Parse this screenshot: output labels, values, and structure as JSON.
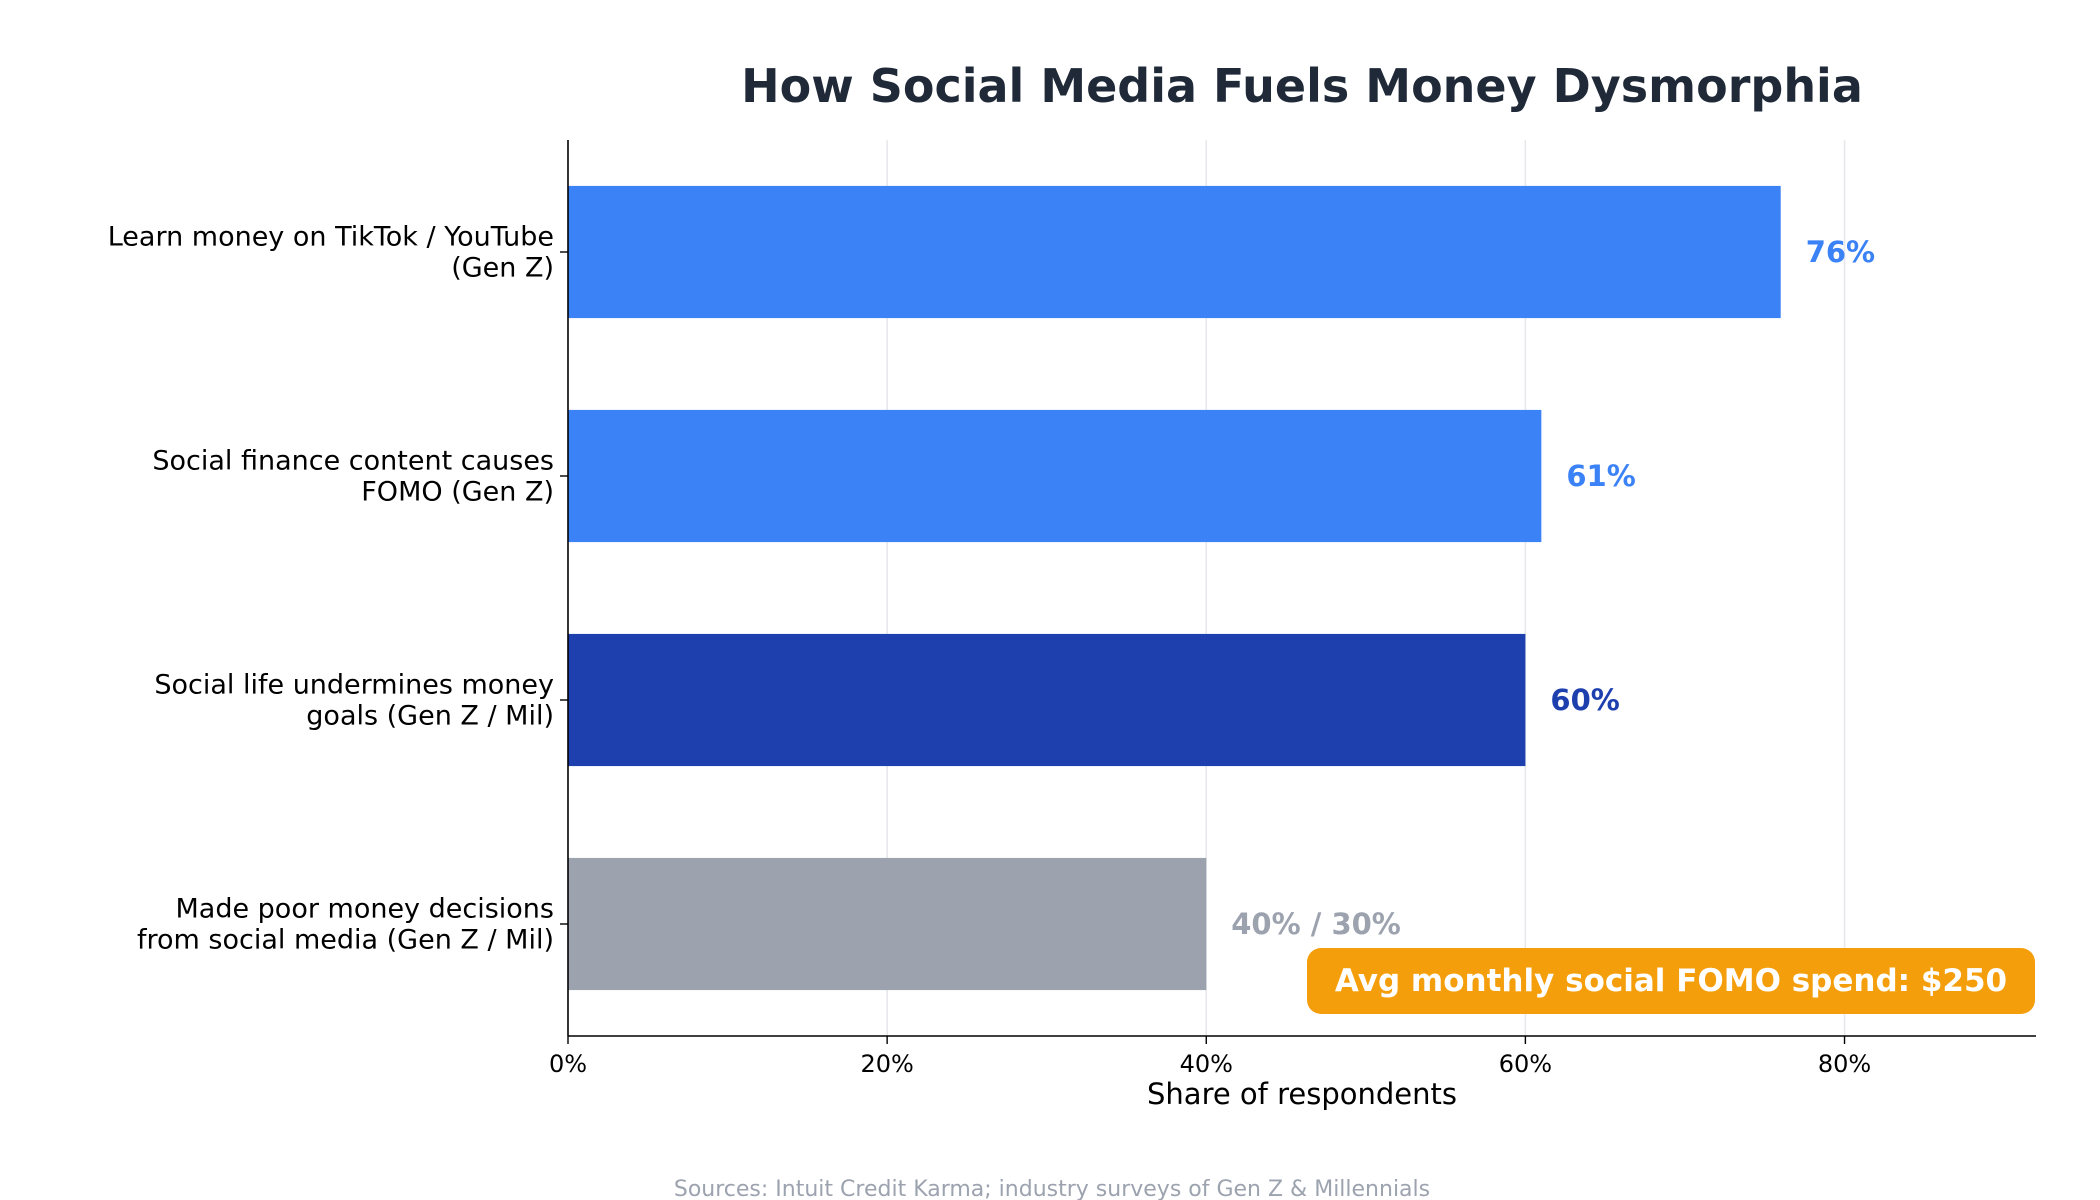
{
  "chart_data": {
    "type": "bar",
    "orientation": "horizontal",
    "title": "How Social Media Fuels Money Dysmorphia",
    "xlabel": "Share of respondents",
    "ylabel": "",
    "xlim": [
      0,
      92
    ],
    "xticks": [
      0,
      20,
      40,
      60,
      80
    ],
    "xtick_labels": [
      "0%",
      "20%",
      "40%",
      "60%",
      "80%"
    ],
    "grid": "vertical",
    "categories": [
      [
        "Learn money on TikTok / YouTube",
        "(Gen Z)"
      ],
      [
        "Social finance content causes",
        "FOMO (Gen Z)"
      ],
      [
        "Social life undermines money",
        "goals (Gen Z / Mil)"
      ],
      [
        "Made poor money decisions",
        "from social media (Gen Z / Mil)"
      ]
    ],
    "values": [
      76,
      61,
      60,
      40
    ],
    "value_labels": [
      "76%",
      "61%",
      "60%",
      "40% / 30%"
    ],
    "colors": [
      "#3b82f6",
      "#3b82f6",
      "#1e40af",
      "#9ca3af"
    ],
    "callout": {
      "text": "Avg monthly social FOMO spend:  $250",
      "color": "#f59e0b"
    },
    "source": "Sources: Intuit Credit Karma; industry surveys of Gen Z & Millennials"
  }
}
